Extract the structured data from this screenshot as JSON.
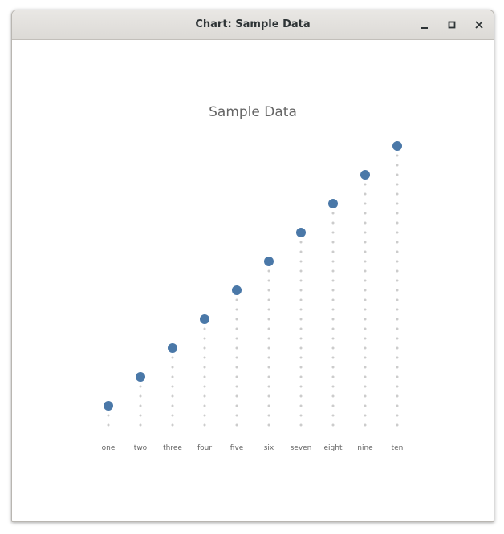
{
  "window": {
    "title": "Chart: Sample Data",
    "controls": [
      "minimize-icon",
      "maximize-icon",
      "close-icon"
    ]
  },
  "colors": {
    "marker": "#4a78a8",
    "stem_dots": "#cccccc",
    "text": "#666666"
  },
  "chart_data": {
    "type": "scatter",
    "style": "lollipop-dotted-stems",
    "title": "Sample Data",
    "xlabel": "",
    "ylabel": "",
    "categories": [
      "one",
      "two",
      "three",
      "four",
      "five",
      "six",
      "seven",
      "eight",
      "nine",
      "ten"
    ],
    "values": [
      1,
      2,
      3,
      4,
      5,
      6,
      7,
      8,
      9,
      10
    ],
    "ylim": [
      0,
      10
    ],
    "grid": false,
    "legend": "none"
  }
}
